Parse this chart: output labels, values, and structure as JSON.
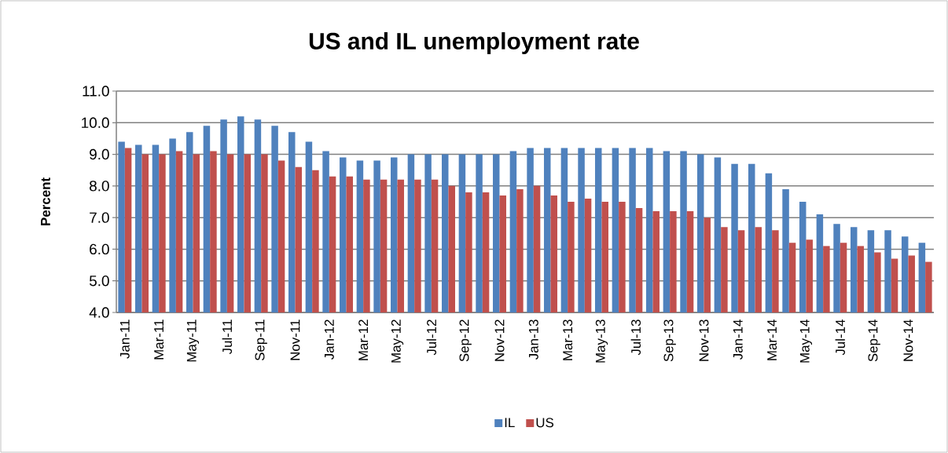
{
  "chart_data": {
    "type": "bar",
    "title": "US and IL unemployment rate",
    "ylabel": "Percent",
    "categories": [
      "Jan-11",
      null,
      "Mar-11",
      null,
      "May-11",
      null,
      "Jul-11",
      null,
      "Sep-11",
      null,
      "Nov-11",
      null,
      "Jan-12",
      null,
      "Mar-12",
      null,
      "May-12",
      null,
      "Jul-12",
      null,
      "Sep-12",
      null,
      "Nov-12",
      null,
      "Jan-13",
      null,
      "Mar-13",
      null,
      "May-13",
      null,
      "Jul-13",
      null,
      "Sep-13",
      null,
      "Nov-13",
      null,
      "Jan-14",
      null,
      "Mar-14",
      null,
      "May-14",
      null,
      "Jul-14",
      null,
      "Sep-14",
      null,
      "Nov-14",
      null
    ],
    "series": [
      {
        "name": "IL",
        "color": "#4f81bd",
        "values": [
          9.4,
          9.3,
          9.3,
          9.5,
          9.7,
          9.9,
          10.1,
          10.2,
          10.1,
          9.9,
          9.7,
          9.4,
          9.1,
          8.9,
          8.8,
          8.8,
          8.9,
          9.0,
          9.0,
          9.0,
          9.0,
          9.0,
          9.0,
          9.1,
          9.2,
          9.2,
          9.2,
          9.2,
          9.2,
          9.2,
          9.2,
          9.2,
          9.1,
          9.1,
          9.0,
          8.9,
          8.7,
          8.7,
          8.4,
          7.9,
          7.5,
          7.1,
          6.8,
          6.7,
          6.6,
          6.6,
          6.4,
          6.2
        ]
      },
      {
        "name": "US",
        "color": "#c0504d",
        "values": [
          9.2,
          9.0,
          9.0,
          9.1,
          9.0,
          9.1,
          9.0,
          9.0,
          9.0,
          8.8,
          8.6,
          8.5,
          8.3,
          8.3,
          8.2,
          8.2,
          8.2,
          8.2,
          8.2,
          8.0,
          7.8,
          7.8,
          7.7,
          7.9,
          8.0,
          7.7,
          7.5,
          7.6,
          7.5,
          7.5,
          7.3,
          7.2,
          7.2,
          7.2,
          7.0,
          6.7,
          6.6,
          6.7,
          6.6,
          6.2,
          6.3,
          6.1,
          6.2,
          6.1,
          5.9,
          5.7,
          5.8,
          5.6
        ]
      }
    ],
    "ylim": [
      4,
      11
    ],
    "yticks": [
      {
        "value": 4,
        "label": "4.0"
      },
      {
        "value": 5,
        "label": "5.0"
      },
      {
        "value": 6,
        "label": "6.0"
      },
      {
        "value": 7,
        "label": "7.0"
      },
      {
        "value": 8,
        "label": "8.0"
      },
      {
        "value": 9,
        "label": "9.0"
      },
      {
        "value": 10,
        "label": "10.0"
      },
      {
        "value": 11,
        "label": "11.0"
      }
    ],
    "grid": "y",
    "legend": "bottom"
  }
}
